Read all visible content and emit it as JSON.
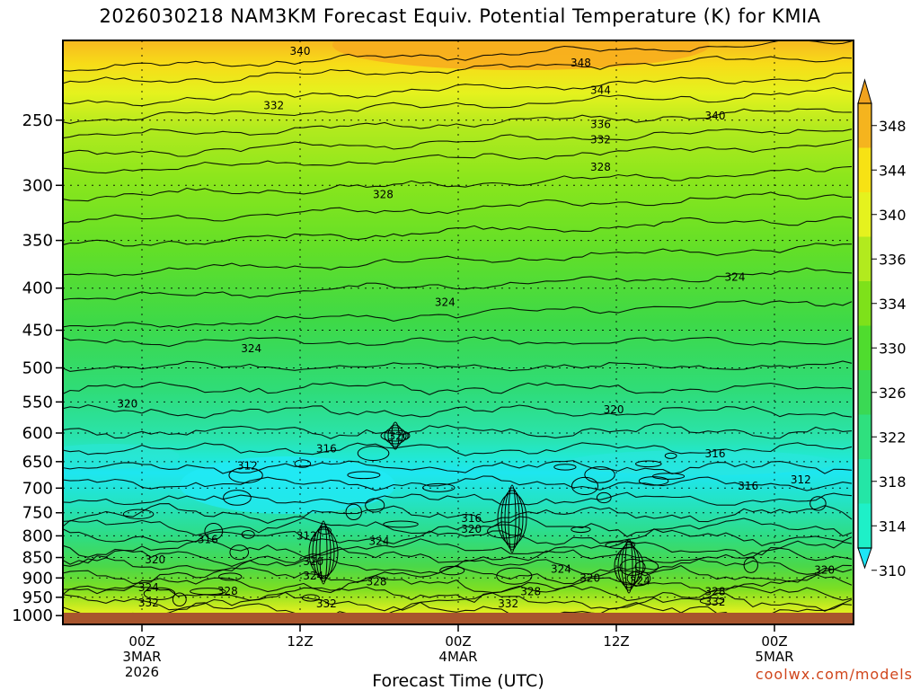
{
  "title": "2026030218 NAM3KM Forecast Equiv. Potential Temperature (K) for KMIA",
  "watermark": "coolwx.com/models",
  "chart_data": {
    "type": "contour",
    "title": "2026030218 NAM3KM Forecast Equiv. Potential Temperature (K) for KMIA",
    "xlabel": "Forecast Time (UTC)",
    "ylabel": "",
    "y_scale": "log-pressure",
    "x_range_hours": [
      0,
      60
    ],
    "y_range_hpa": [
      1025,
      200
    ],
    "y_ticks": [
      250,
      300,
      350,
      400,
      450,
      500,
      550,
      600,
      650,
      700,
      750,
      800,
      850,
      900,
      950,
      1000
    ],
    "x_ticks": [
      {
        "hour": 6,
        "lines": [
          "00Z",
          "3MAR",
          "2026"
        ]
      },
      {
        "hour": 18,
        "lines": [
          "12Z"
        ]
      },
      {
        "hour": 30,
        "lines": [
          "00Z",
          "4MAR"
        ]
      },
      {
        "hour": 42,
        "lines": [
          "12Z"
        ]
      },
      {
        "hour": 54,
        "lines": [
          "00Z",
          "5MAR"
        ]
      }
    ],
    "grid": "dotted",
    "colorbar": {
      "placement": "right",
      "labels": [
        310,
        314,
        318,
        322,
        326,
        330,
        334,
        336,
        340,
        344,
        348
      ],
      "colors": [
        "#1ee6f5",
        "#1ef0c8",
        "#24e6a6",
        "#2fe07e",
        "#3ad954",
        "#4fdc2e",
        "#7ee11a",
        "#b2ea1e",
        "#e5f21e",
        "#f7e214",
        "#f5b41e"
      ]
    },
    "contour_labels": [
      {
        "text": "340",
        "hour": 18.0,
        "hpa": 206
      },
      {
        "text": "348",
        "hour": 39.3,
        "hpa": 213
      },
      {
        "text": "344",
        "hour": 40.8,
        "hpa": 230
      },
      {
        "text": "332",
        "hour": 16.0,
        "hpa": 240
      },
      {
        "text": "340",
        "hour": 49.5,
        "hpa": 247
      },
      {
        "text": "336",
        "hour": 40.8,
        "hpa": 253
      },
      {
        "text": "332",
        "hour": 40.8,
        "hpa": 264
      },
      {
        "text": "328",
        "hour": 40.8,
        "hpa": 285
      },
      {
        "text": "328",
        "hour": 24.3,
        "hpa": 308
      },
      {
        "text": "324",
        "hour": 51.0,
        "hpa": 388
      },
      {
        "text": "324",
        "hour": 29.0,
        "hpa": 416
      },
      {
        "text": "324",
        "hour": 14.3,
        "hpa": 474
      },
      {
        "text": "320",
        "hour": 4.9,
        "hpa": 553
      },
      {
        "text": "320",
        "hour": 41.8,
        "hpa": 562
      },
      {
        "text": "320",
        "hour": 25.5,
        "hpa": 605
      },
      {
        "text": "316",
        "hour": 20.0,
        "hpa": 627
      },
      {
        "text": "316",
        "hour": 49.5,
        "hpa": 636
      },
      {
        "text": "312",
        "hour": 14.0,
        "hpa": 658
      },
      {
        "text": "312",
        "hour": 56.0,
        "hpa": 684
      },
      {
        "text": "316",
        "hour": 52.0,
        "hpa": 696
      },
      {
        "text": "316",
        "hour": 31.0,
        "hpa": 762
      },
      {
        "text": "320",
        "hour": 31.0,
        "hpa": 785
      },
      {
        "text": "316",
        "hour": 11.0,
        "hpa": 808
      },
      {
        "text": "312",
        "hour": 18.5,
        "hpa": 800
      },
      {
        "text": "324",
        "hour": 24.0,
        "hpa": 812
      },
      {
        "text": "320",
        "hour": 7.0,
        "hpa": 855
      },
      {
        "text": "320",
        "hour": 19.0,
        "hpa": 860
      },
      {
        "text": "324",
        "hour": 19.0,
        "hpa": 895
      },
      {
        "text": "324",
        "hour": 37.8,
        "hpa": 878
      },
      {
        "text": "320",
        "hour": 40.0,
        "hpa": 900
      },
      {
        "text": "324",
        "hour": 43.8,
        "hpa": 907
      },
      {
        "text": "320",
        "hour": 57.8,
        "hpa": 880
      },
      {
        "text": "324",
        "hour": 6.5,
        "hpa": 925
      },
      {
        "text": "328",
        "hour": 23.8,
        "hpa": 910
      },
      {
        "text": "328",
        "hour": 12.5,
        "hpa": 934
      },
      {
        "text": "328",
        "hour": 35.5,
        "hpa": 935
      },
      {
        "text": "328",
        "hour": 49.5,
        "hpa": 935
      },
      {
        "text": "332",
        "hour": 6.5,
        "hpa": 965
      },
      {
        "text": "332",
        "hour": 20.0,
        "hpa": 968
      },
      {
        "text": "332",
        "hour": 33.8,
        "hpa": 968
      },
      {
        "text": "332",
        "hour": 49.5,
        "hpa": 962
      }
    ]
  }
}
